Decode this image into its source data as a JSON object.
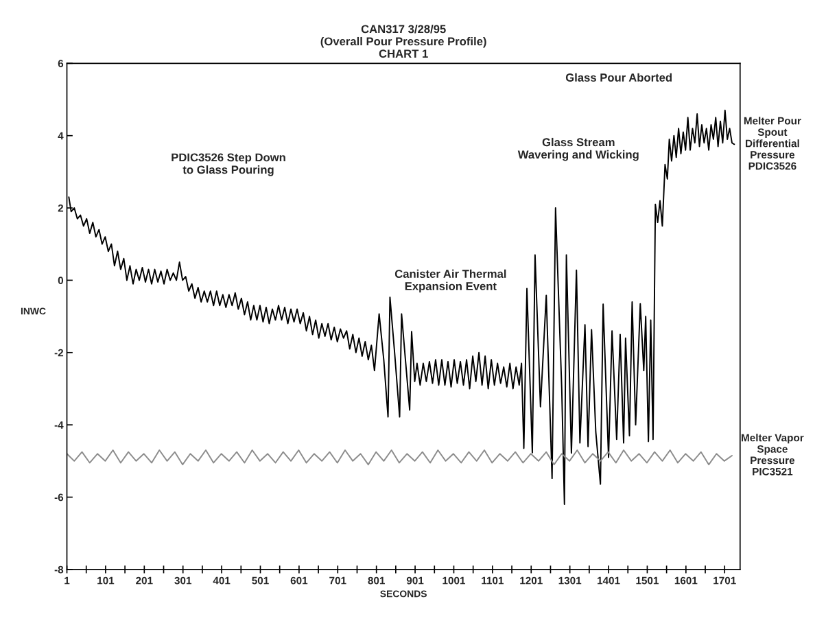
{
  "chart_data": {
    "type": "line",
    "title": "CAN317 3/28/95\n(Overall Pour Pressure Profile)\nCHART 1",
    "xlabel": "SECONDS",
    "ylabel": "INWC",
    "xlim": [
      1,
      1741
    ],
    "xticks": [
      1,
      {
        "value": 51,
        "label": null
      },
      101,
      {
        "value": 151,
        "label": null
      },
      201,
      {
        "value": 251,
        "label": null
      },
      301,
      {
        "value": 351,
        "label": null
      },
      401,
      {
        "value": 451,
        "label": null
      },
      501,
      {
        "value": 551,
        "label": null
      },
      601,
      {
        "value": 651,
        "label": null
      },
      701,
      {
        "value": 751,
        "label": null
      },
      801,
      {
        "value": 851,
        "label": null
      },
      901,
      {
        "value": 951,
        "label": null
      },
      1001,
      {
        "value": 1051,
        "label": null
      },
      1101,
      {
        "value": 1151,
        "label": null
      },
      1201,
      {
        "value": 1251,
        "label": null
      },
      1301,
      {
        "value": 1351,
        "label": null
      },
      1401,
      {
        "value": 1451,
        "label": null
      },
      1501,
      {
        "value": 1551,
        "label": null
      },
      1601,
      {
        "value": 1651,
        "label": null
      },
      1701
    ],
    "ylim": [
      -8,
      6
    ],
    "yticks": [
      -8,
      -6,
      -4,
      -2,
      0,
      2,
      4,
      6
    ],
    "grid": false,
    "legend": false,
    "marker": "none",
    "line_style": "solid",
    "annotations": [
      "PDIC3526 Step Down\nto Glass Pouring",
      "Canister Air Thermal\nExpansion Event",
      "Glass Stream\nWavering and Wicking",
      "Glass Pour Aborted"
    ],
    "series": [
      {
        "name": "Melter Pour\nSpout\nDifferential\nPressure\nPDIC3526",
        "color": "#000000",
        "x": [
          6,
          12,
          20,
          28,
          36,
          44,
          52,
          60,
          68,
          76,
          84,
          92,
          100,
          108,
          116,
          124,
          132,
          140,
          148,
          156,
          164,
          172,
          180,
          188,
          196,
          204,
          212,
          220,
          228,
          236,
          244,
          252,
          260,
          268,
          276,
          284,
          292,
          300,
          308,
          316,
          324,
          332,
          340,
          348,
          356,
          364,
          372,
          380,
          388,
          396,
          404,
          412,
          420,
          428,
          436,
          444,
          452,
          460,
          468,
          476,
          484,
          492,
          500,
          508,
          516,
          524,
          532,
          540,
          548,
          556,
          564,
          572,
          580,
          588,
          596,
          604,
          612,
          620,
          628,
          636,
          644,
          652,
          660,
          668,
          676,
          684,
          692,
          700,
          708,
          716,
          724,
          732,
          740,
          748,
          756,
          764,
          772,
          780,
          788,
          796,
          808,
          820,
          831,
          836,
          848,
          861,
          866,
          876,
          887,
          892,
          900,
          906,
          914,
          922,
          930,
          938,
          946,
          954,
          962,
          970,
          978,
          986,
          994,
          1002,
          1010,
          1018,
          1026,
          1034,
          1042,
          1050,
          1058,
          1066,
          1074,
          1082,
          1090,
          1098,
          1106,
          1114,
          1122,
          1130,
          1138,
          1146,
          1154,
          1162,
          1170,
          1176,
          1182,
          1190,
          1204,
          1211,
          1225,
          1240,
          1255,
          1264,
          1280,
          1287,
          1292,
          1305,
          1318,
          1327,
          1340,
          1348,
          1357,
          1368,
          1380,
          1387,
          1401,
          1410,
          1422,
          1431,
          1440,
          1445,
          1455,
          1462,
          1471,
          1483,
          1492,
          1497,
          1504,
          1510,
          1516,
          1522,
          1528,
          1534,
          1540,
          1547,
          1553,
          1558,
          1564,
          1570,
          1576,
          1582,
          1588,
          1594,
          1600,
          1606,
          1612,
          1618,
          1624,
          1630,
          1636,
          1642,
          1648,
          1654,
          1660,
          1666,
          1672,
          1678,
          1684,
          1690,
          1696,
          1702,
          1708,
          1714,
          1720,
          1726
        ],
        "values": [
          2.3,
          1.9,
          2.0,
          1.7,
          1.8,
          1.5,
          1.7,
          1.3,
          1.6,
          1.2,
          1.4,
          1.0,
          1.2,
          0.8,
          1.0,
          0.4,
          0.8,
          0.3,
          0.6,
          0.0,
          0.4,
          -0.1,
          0.3,
          0.0,
          0.35,
          -0.05,
          0.3,
          -0.1,
          0.3,
          -0.05,
          0.25,
          -0.1,
          0.3,
          0.0,
          0.2,
          0.0,
          0.5,
          0.0,
          0.1,
          -0.3,
          -0.1,
          -0.5,
          -0.2,
          -0.6,
          -0.3,
          -0.6,
          -0.3,
          -0.7,
          -0.3,
          -0.7,
          -0.4,
          -0.75,
          -0.4,
          -0.7,
          -0.35,
          -0.8,
          -0.5,
          -0.95,
          -0.6,
          -1.1,
          -0.7,
          -1.1,
          -0.7,
          -1.15,
          -0.75,
          -1.2,
          -0.8,
          -1.1,
          -0.7,
          -1.1,
          -0.75,
          -1.2,
          -0.8,
          -1.15,
          -0.8,
          -1.2,
          -0.9,
          -1.4,
          -1.0,
          -1.5,
          -1.1,
          -1.6,
          -1.2,
          -1.55,
          -1.2,
          -1.65,
          -1.3,
          -1.7,
          -1.35,
          -1.6,
          -1.4,
          -1.9,
          -1.5,
          -2.0,
          -1.6,
          -2.1,
          -1.7,
          -2.2,
          -1.8,
          -2.5,
          -0.93,
          -2.2,
          -3.78,
          -0.47,
          -2.0,
          -3.78,
          -0.93,
          -2.2,
          -3.59,
          -1.42,
          -2.8,
          -2.3,
          -2.9,
          -2.3,
          -2.8,
          -2.25,
          -2.85,
          -2.2,
          -2.9,
          -2.2,
          -2.9,
          -2.25,
          -2.95,
          -2.2,
          -2.85,
          -2.25,
          -2.9,
          -2.2,
          -3.0,
          -2.1,
          -2.8,
          -2.0,
          -2.9,
          -2.1,
          -3.0,
          -2.2,
          -2.9,
          -2.3,
          -2.85,
          -2.4,
          -2.95,
          -2.3,
          -3.0,
          -2.4,
          -2.9,
          -2.3,
          -4.65,
          -0.23,
          -4.77,
          0.7,
          -3.5,
          -0.42,
          -5.48,
          2.0,
          -3.0,
          -6.2,
          0.7,
          -4.78,
          0.28,
          -4.5,
          -1.23,
          -4.6,
          -1.37,
          -4.2,
          -5.64,
          -0.66,
          -4.9,
          -1.4,
          -4.4,
          -1.5,
          -4.5,
          -1.6,
          -4.3,
          -0.6,
          -4.0,
          -0.65,
          -2.5,
          -1.0,
          -4.46,
          -1.1,
          -4.4,
          2.1,
          1.6,
          2.2,
          1.5,
          3.2,
          2.8,
          3.9,
          3.3,
          4.0,
          3.4,
          4.2,
          3.5,
          4.1,
          3.6,
          4.5,
          3.6,
          4.2,
          3.8,
          4.6,
          3.7,
          4.3,
          3.8,
          4.2,
          3.6,
          4.3,
          3.9,
          4.5,
          3.7,
          4.4,
          3.8,
          4.7,
          3.9,
          4.2,
          3.8,
          3.76
        ]
      },
      {
        "name": "Melter Vapor\nSpace\nPressure\nPIC3521",
        "color": "#8c8c8c",
        "x": [
          1,
          20,
          40,
          60,
          80,
          100,
          120,
          140,
          160,
          180,
          200,
          220,
          240,
          260,
          280,
          300,
          320,
          340,
          360,
          380,
          400,
          420,
          440,
          460,
          480,
          500,
          520,
          540,
          560,
          580,
          600,
          620,
          640,
          660,
          680,
          700,
          720,
          740,
          760,
          780,
          800,
          820,
          840,
          860,
          880,
          900,
          920,
          940,
          960,
          980,
          1000,
          1020,
          1040,
          1060,
          1080,
          1100,
          1120,
          1140,
          1160,
          1180,
          1200,
          1220,
          1240,
          1260,
          1280,
          1300,
          1320,
          1340,
          1360,
          1380,
          1400,
          1420,
          1440,
          1460,
          1480,
          1500,
          1520,
          1540,
          1560,
          1580,
          1600,
          1620,
          1640,
          1660,
          1680,
          1700,
          1720
        ],
        "values": [
          -4.8,
          -5.0,
          -4.75,
          -5.05,
          -4.8,
          -5.0,
          -4.7,
          -5.05,
          -4.75,
          -5.0,
          -4.8,
          -5.05,
          -4.7,
          -5.0,
          -4.75,
          -5.1,
          -4.8,
          -5.0,
          -4.7,
          -5.05,
          -4.8,
          -5.0,
          -4.75,
          -5.05,
          -4.7,
          -5.0,
          -4.8,
          -5.05,
          -4.75,
          -5.0,
          -4.7,
          -5.05,
          -4.8,
          -5.0,
          -4.75,
          -5.05,
          -4.7,
          -5.0,
          -4.8,
          -5.1,
          -4.75,
          -5.0,
          -4.7,
          -5.05,
          -4.8,
          -5.0,
          -4.75,
          -5.05,
          -4.7,
          -5.0,
          -4.8,
          -5.05,
          -4.75,
          -5.0,
          -4.7,
          -5.05,
          -4.8,
          -5.0,
          -4.75,
          -5.05,
          -4.8,
          -5.0,
          -4.75,
          -5.1,
          -4.8,
          -5.0,
          -4.7,
          -5.05,
          -4.8,
          -5.0,
          -4.75,
          -5.05,
          -4.7,
          -5.0,
          -4.8,
          -5.05,
          -4.75,
          -5.0,
          -4.7,
          -5.05,
          -4.8,
          -5.0,
          -4.75,
          -5.1,
          -4.8,
          -5.0,
          -4.85
        ]
      }
    ]
  }
}
